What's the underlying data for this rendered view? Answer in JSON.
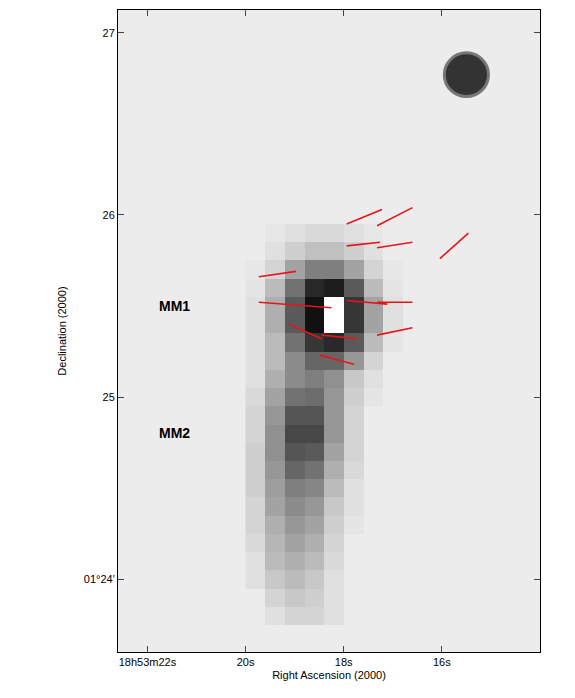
{
  "chart_data": {
    "type": "heatmap",
    "x_title": "Right Ascension (2000)",
    "y_title": "Declination (2000)",
    "xlim": [
      22.6,
      14.0
    ],
    "ylim": [
      23.6,
      27.125
    ],
    "xticks": [
      {
        "value": 22,
        "label": "18h53m22s"
      },
      {
        "value": 20,
        "label": "20s"
      },
      {
        "value": 18,
        "label": "18s"
      },
      {
        "value": 16,
        "label": "16s"
      }
    ],
    "yticks": [
      {
        "value": 24,
        "label": "01°24'"
      },
      25,
      26,
      27
    ],
    "grid": false,
    "intensity": {
      "x": [
        19.8,
        19.4,
        19.0,
        18.6,
        18.2,
        17.8,
        17.4,
        17.0,
        16.6
      ],
      "y": [
        23.8,
        23.9,
        24.0,
        24.1,
        24.2,
        24.3,
        24.4,
        24.5,
        24.6,
        24.7,
        24.8,
        24.9,
        25.0,
        25.1,
        25.2,
        25.3,
        25.4,
        25.5,
        25.6,
        25.7,
        25.8,
        25.9
      ],
      "z": [
        [
          0,
          0.05,
          0.1,
          0.1,
          0.05,
          0,
          0,
          0,
          0
        ],
        [
          0,
          0.1,
          0.15,
          0.12,
          0.05,
          0,
          0,
          0,
          0
        ],
        [
          0.05,
          0.15,
          0.2,
          0.15,
          0.05,
          0,
          0,
          0,
          0
        ],
        [
          0.05,
          0.2,
          0.25,
          0.2,
          0.08,
          0,
          0,
          0,
          0
        ],
        [
          0.08,
          0.22,
          0.3,
          0.25,
          0.1,
          0,
          0,
          0,
          0
        ],
        [
          0.1,
          0.25,
          0.35,
          0.3,
          0.12,
          0.03,
          0,
          0,
          0
        ],
        [
          0.1,
          0.3,
          0.4,
          0.35,
          0.15,
          0.05,
          0,
          0,
          0
        ],
        [
          0.12,
          0.32,
          0.45,
          0.42,
          0.2,
          0.05,
          0,
          0,
          0
        ],
        [
          0.12,
          0.35,
          0.55,
          0.5,
          0.25,
          0.08,
          0,
          0,
          0
        ],
        [
          0.12,
          0.38,
          0.62,
          0.6,
          0.3,
          0.1,
          0,
          0,
          0
        ],
        [
          0.1,
          0.38,
          0.68,
          0.68,
          0.35,
          0.1,
          0,
          0,
          0
        ],
        [
          0.1,
          0.35,
          0.62,
          0.62,
          0.35,
          0.1,
          0,
          0,
          0
        ],
        [
          0.08,
          0.3,
          0.5,
          0.52,
          0.35,
          0.12,
          0.03,
          0,
          0
        ],
        [
          0.05,
          0.25,
          0.4,
          0.45,
          0.38,
          0.15,
          0.05,
          0,
          0
        ],
        [
          0.05,
          0.2,
          0.4,
          0.55,
          0.55,
          0.35,
          0.1,
          0,
          0
        ],
        [
          0.05,
          0.2,
          0.5,
          0.75,
          0.8,
          0.6,
          0.2,
          0.03,
          0
        ],
        [
          0.05,
          0.25,
          0.6,
          0.9,
          1.0,
          0.75,
          0.3,
          0.05,
          0
        ],
        [
          0.05,
          0.25,
          0.6,
          0.9,
          1.0,
          0.75,
          0.3,
          0.05,
          0
        ],
        [
          0.03,
          0.2,
          0.5,
          0.8,
          0.85,
          0.6,
          0.2,
          0.03,
          0
        ],
        [
          0.02,
          0.1,
          0.3,
          0.45,
          0.45,
          0.3,
          0.1,
          0.02,
          0
        ],
        [
          0,
          0.05,
          0.12,
          0.18,
          0.18,
          0.12,
          0.05,
          0,
          0
        ],
        [
          0,
          0.02,
          0.05,
          0.08,
          0.08,
          0.05,
          0.02,
          0,
          0
        ]
      ]
    },
    "vectors": {
      "color": "#e8141c",
      "segments": [
        [
          17.94,
          25.95,
          17.22,
          26.03
        ],
        [
          17.32,
          25.94,
          16.6,
          26.04
        ],
        [
          17.94,
          25.83,
          17.26,
          25.85
        ],
        [
          17.32,
          25.82,
          16.6,
          25.85
        ],
        [
          16.04,
          25.76,
          15.46,
          25.9
        ],
        [
          19.73,
          25.66,
          18.97,
          25.69
        ],
        [
          19.73,
          25.52,
          18.25,
          25.49
        ],
        [
          17.94,
          25.53,
          17.11,
          25.51
        ],
        [
          17.32,
          25.52,
          16.6,
          25.52
        ],
        [
          19.11,
          25.4,
          18.45,
          25.32
        ],
        [
          18.45,
          25.34,
          17.73,
          25.32
        ],
        [
          17.32,
          25.34,
          16.6,
          25.38
        ],
        [
          18.49,
          25.23,
          17.79,
          25.18
        ]
      ]
    },
    "annotations": [
      {
        "text": "MM1",
        "x": 21.8,
        "y": 25.5
      },
      {
        "text": "MM2",
        "x": 21.8,
        "y": 24.8
      }
    ],
    "beam": {
      "x": 15.5,
      "y": 26.77,
      "rx": 0.45,
      "ry": 0.12
    }
  }
}
